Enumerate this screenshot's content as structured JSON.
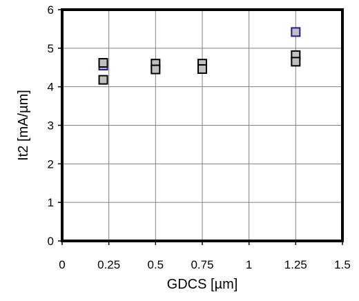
{
  "chart_data": {
    "type": "scatter",
    "xlabel": "GDCS [µm]",
    "ylabel": "It2 [mA/µm]",
    "xlim": [
      0,
      1.5
    ],
    "ylim": [
      0,
      6
    ],
    "x_ticks": [
      "0",
      "0.25",
      "0.5",
      "0.75",
      "1",
      "1.25",
      "1.5"
    ],
    "y_ticks": [
      "0",
      "1",
      "2",
      "3",
      "4",
      "5",
      "6"
    ],
    "grid": true,
    "legend": "none",
    "marker": "square",
    "series": [
      {
        "points": [
          {
            "x": 0.22,
            "y": 4.55
          },
          {
            "x": 0.22,
            "y": 4.62
          },
          {
            "x": 0.22,
            "y": 4.18
          },
          {
            "x": 0.5,
            "y": 4.6
          },
          {
            "x": 0.5,
            "y": 4.45
          },
          {
            "x": 0.75,
            "y": 4.6
          },
          {
            "x": 0.75,
            "y": 4.46
          },
          {
            "x": 1.25,
            "y": 5.42
          },
          {
            "x": 1.25,
            "y": 4.82
          },
          {
            "x": 1.25,
            "y": 4.65
          }
        ],
        "edge_colors": [
          "#1a1a8c",
          "#000000",
          "#000000",
          "#000000",
          "#000000",
          "#000000",
          "#000000",
          "#1a1a8c",
          "#000000",
          "#000000"
        ]
      }
    ],
    "colors": {
      "marker_fill": "#c0c0c0",
      "grid": "#808080",
      "frame": "#000000"
    }
  }
}
